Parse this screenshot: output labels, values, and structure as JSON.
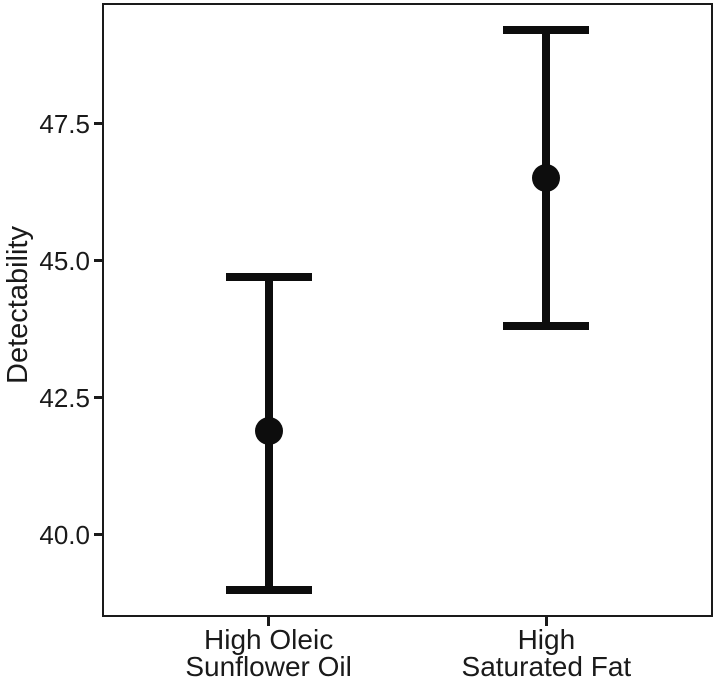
{
  "figure": {
    "background": "#ffffff"
  },
  "chart_data": {
    "type": "scatter",
    "subtype": "point-estimates-with-error-bars",
    "title": "",
    "xlabel": "",
    "ylabel": "Detectability",
    "categories": [
      "High Oleic Sunflower Oil",
      "High Saturated Fat"
    ],
    "category_label_lines": [
      [
        "High Oleic",
        "Sunflower Oil"
      ],
      [
        "High",
        "Saturated Fat"
      ]
    ],
    "points": [
      {
        "category": "High Oleic Sunflower Oil",
        "mean": 41.9,
        "ci_low": 39.0,
        "ci_high": 44.7
      },
      {
        "category": "High Saturated Fat",
        "mean": 46.5,
        "ci_low": 43.8,
        "ci_high": 49.2
      }
    ],
    "ylim": [
      38.5,
      49.7
    ],
    "yticks": [
      40.0,
      42.5,
      45.0,
      47.5
    ],
    "ytick_labels": [
      "40.0",
      "42.5",
      "45.0",
      "47.5"
    ],
    "grid": false,
    "legend": false,
    "marker": "filled-circle",
    "colors": {
      "data": "#0d0d0d",
      "frame": "#1a1a1a",
      "text": "#1a1a1a"
    }
  }
}
